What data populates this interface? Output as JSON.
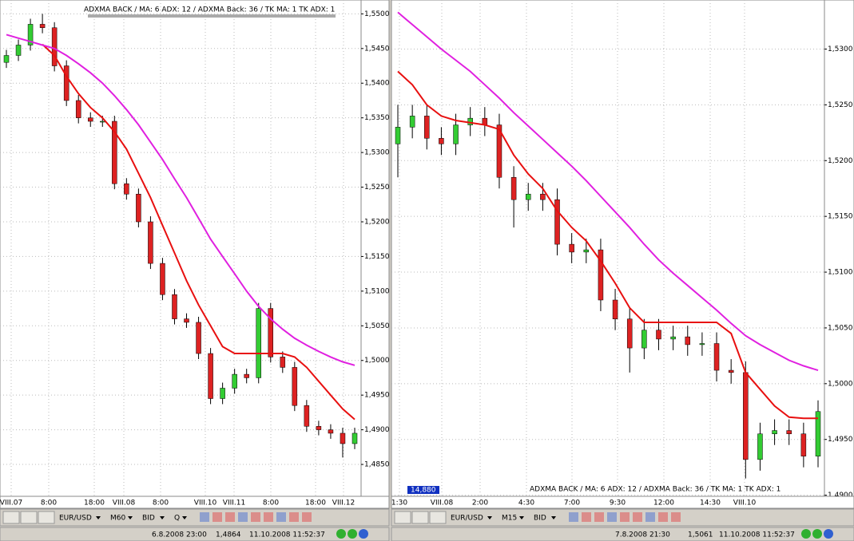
{
  "panels": [
    {
      "chart": {
        "type": "candlestick",
        "annotation": "ADXMA BACK / MA: 6 ADX: 12 / ADXMA Back: 36 / TK MA: 1 TK ADX: 1",
        "open": [
          1.543,
          1.544,
          1.5455,
          1.5485,
          1.548,
          1.5425,
          1.5375,
          1.535,
          1.5345,
          1.5345,
          1.5255,
          1.524,
          1.52,
          1.514,
          1.5095,
          1.506,
          1.5055,
          1.501,
          1.4945,
          1.496,
          1.498,
          1.4975,
          1.5075,
          1.5005,
          1.499,
          1.4935,
          1.4905,
          1.49,
          1.4895,
          1.488
        ],
        "high": [
          1.5448,
          1.5463,
          1.5493,
          1.55,
          1.5488,
          1.5433,
          1.5383,
          1.5358,
          1.5353,
          1.5353,
          1.5263,
          1.5248,
          1.5208,
          1.5148,
          1.5103,
          1.5068,
          1.5063,
          1.5018,
          1.4968,
          1.4988,
          1.4988,
          1.5083,
          1.5083,
          1.5013,
          1.4998,
          1.4943,
          1.4913,
          1.4908,
          1.4903,
          1.4903
        ],
        "low": [
          1.5422,
          1.5432,
          1.5447,
          1.5472,
          1.5417,
          1.5367,
          1.5342,
          1.5337,
          1.5337,
          1.5247,
          1.5232,
          1.5192,
          1.5132,
          1.5087,
          1.5052,
          1.5047,
          1.5002,
          1.4937,
          1.4937,
          1.4952,
          1.4967,
          1.4967,
          1.4997,
          1.4982,
          1.4927,
          1.4897,
          1.4892,
          1.4887,
          1.486,
          1.4872
        ],
        "close": [
          1.544,
          1.5455,
          1.5485,
          1.548,
          1.5425,
          1.5375,
          1.535,
          1.5345,
          1.5345,
          1.5255,
          1.524,
          1.52,
          1.514,
          1.5095,
          1.506,
          1.5055,
          1.501,
          1.4945,
          1.496,
          1.498,
          1.4975,
          1.5075,
          1.5005,
          1.499,
          1.4935,
          1.4905,
          1.49,
          1.4895,
          1.488,
          1.4895
        ],
        "lines": [
          {
            "color": "#e81010",
            "values": [
              null,
              null,
              null,
              1.5456,
              1.544,
              1.541,
              1.5385,
              1.5365,
              1.535,
              1.533,
              1.5305,
              1.527,
              1.5235,
              1.5195,
              1.5155,
              1.5115,
              1.508,
              1.505,
              1.502,
              1.501,
              1.501,
              1.501,
              1.501,
              1.501,
              1.5005,
              1.499,
              1.497,
              1.495,
              1.493,
              1.4915
            ]
          },
          {
            "color": "#e020e0",
            "values": [
              1.547,
              1.5465,
              1.546,
              1.5455,
              1.545,
              1.544,
              1.5428,
              1.5415,
              1.54,
              1.5382,
              1.5362,
              1.534,
              1.5315,
              1.529,
              1.5262,
              1.5235,
              1.5205,
              1.5175,
              1.515,
              1.5125,
              1.51,
              1.5078,
              1.506,
              1.5045,
              1.5032,
              1.5022,
              1.5013,
              1.5005,
              1.4998,
              1.4993
            ]
          }
        ],
        "ylim": [
          1.4804,
          1.552
        ],
        "yticks": [
          {
            "value": 1.55,
            "label": "1,5500"
          },
          {
            "value": 1.545,
            "label": "1,5450"
          },
          {
            "value": 1.54,
            "label": "1,5400"
          },
          {
            "value": 1.535,
            "label": "1,5350"
          },
          {
            "value": 1.53,
            "label": "1,5300"
          },
          {
            "value": 1.525,
            "label": "1,5250"
          },
          {
            "value": 1.52,
            "label": "1,5200"
          },
          {
            "value": 1.515,
            "label": "1,5150"
          },
          {
            "value": 1.51,
            "label": "1,5100"
          },
          {
            "value": 1.505,
            "label": "1,5050"
          },
          {
            "value": 1.5,
            "label": "1,5000"
          },
          {
            "value": 1.495,
            "label": "1,4950"
          },
          {
            "value": 1.49,
            "label": "1,4900"
          },
          {
            "value": 1.485,
            "label": "1,4850"
          }
        ],
        "time_labels": [
          "VIII.07",
          "8:00",
          "18:00",
          "VIII.08",
          "8:00",
          "VIII.10",
          "VIII.11",
          "8:00",
          "18:00",
          "VIII.12"
        ]
      },
      "toolbar": [
        "EUR/USD",
        "M60",
        "BID",
        "Q"
      ],
      "status": [
        "6.8.2008 23:00",
        "1,4864",
        "11.10.2008 11:52:37"
      ]
    },
    {
      "chart": {
        "type": "candlestick",
        "annotation": "ADXMA BACK / MA: 6 ADX: 12 / ADXMA Back: 36 / TK MA: 1 TK ADX: 1",
        "tag": "14,880",
        "open": [
          1.5215,
          1.523,
          1.524,
          1.522,
          1.5215,
          1.5232,
          1.5238,
          1.5232,
          1.5185,
          1.5165,
          1.517,
          1.5165,
          1.5125,
          1.5118,
          1.512,
          1.5075,
          1.5058,
          1.5032,
          1.5048,
          1.504,
          1.5042,
          1.5035,
          1.5036,
          1.5012,
          1.501,
          1.4932,
          1.4955,
          1.4958,
          1.4955,
          1.4935
        ],
        "high": [
          1.525,
          1.525,
          1.525,
          1.523,
          1.5242,
          1.5248,
          1.5248,
          1.5242,
          1.5195,
          1.518,
          1.518,
          1.5175,
          1.5135,
          1.513,
          1.513,
          1.5085,
          1.5068,
          1.5058,
          1.5058,
          1.5052,
          1.5052,
          1.5046,
          1.5046,
          1.5022,
          1.502,
          1.4965,
          1.4968,
          1.4968,
          1.4965,
          1.4985
        ],
        "low": [
          1.5185,
          1.522,
          1.521,
          1.5205,
          1.5205,
          1.5222,
          1.5222,
          1.5175,
          1.514,
          1.5155,
          1.5155,
          1.5115,
          1.5108,
          1.5108,
          1.5065,
          1.5048,
          1.501,
          1.5022,
          1.503,
          1.503,
          1.5025,
          1.5025,
          1.5002,
          1.5,
          1.4915,
          1.4922,
          1.4945,
          1.4945,
          1.4925,
          1.4925
        ],
        "close": [
          1.523,
          1.524,
          1.522,
          1.5215,
          1.5232,
          1.5238,
          1.5232,
          1.5185,
          1.5165,
          1.517,
          1.5165,
          1.5125,
          1.5118,
          1.512,
          1.5075,
          1.5058,
          1.5032,
          1.5048,
          1.504,
          1.5042,
          1.5035,
          1.5036,
          1.5012,
          1.501,
          1.4932,
          1.4955,
          1.4958,
          1.4955,
          1.4935,
          1.4975
        ],
        "lines": [
          {
            "color": "#e81010",
            "values": [
              1.528,
              1.5268,
              1.525,
              1.524,
              1.5236,
              1.5234,
              1.5232,
              1.5228,
              1.5205,
              1.5188,
              1.5175,
              1.5155,
              1.514,
              1.5128,
              1.511,
              1.509,
              1.5068,
              1.5055,
              1.5055,
              1.5055,
              1.5055,
              1.5055,
              1.5055,
              1.5045,
              1.501,
              1.4995,
              1.498,
              1.497,
              1.4969,
              1.4969
            ]
          },
          {
            "color": "#e020e0",
            "values": [
              1.5333,
              1.5322,
              1.5311,
              1.53,
              1.529,
              1.528,
              1.5268,
              1.5256,
              1.5243,
              1.5231,
              1.5219,
              1.5207,
              1.5195,
              1.5182,
              1.5168,
              1.5154,
              1.514,
              1.5125,
              1.5111,
              1.5099,
              1.5088,
              1.5077,
              1.5066,
              1.5054,
              1.5043,
              1.5035,
              1.5028,
              1.5021,
              1.5016,
              1.5012
            ]
          }
        ],
        "ylim": [
          1.4899,
          1.5344
        ],
        "yticks": [
          {
            "value": 1.53,
            "label": "1,5300"
          },
          {
            "value": 1.525,
            "label": "1,5250"
          },
          {
            "value": 1.52,
            "label": "1,5200"
          },
          {
            "value": 1.515,
            "label": "1,5150"
          },
          {
            "value": 1.51,
            "label": "1,5100"
          },
          {
            "value": 1.505,
            "label": "1,5050"
          },
          {
            "value": 1.5,
            "label": "1,5000"
          },
          {
            "value": 1.495,
            "label": "1,4950"
          },
          {
            "value": 1.49,
            "label": "1,4900"
          }
        ],
        "time_labels": [
          "1:30",
          "VIII.08",
          "2:00",
          "4:30",
          "7:00",
          "9:30",
          "12:00",
          "14:30",
          "VIII.10"
        ]
      },
      "toolbar": [
        "EUR/USD",
        "M15",
        "BID"
      ],
      "status": [
        "7.8.2008 21:30",
        "1,5061",
        "11.10.2008 11:52:37"
      ]
    }
  ]
}
